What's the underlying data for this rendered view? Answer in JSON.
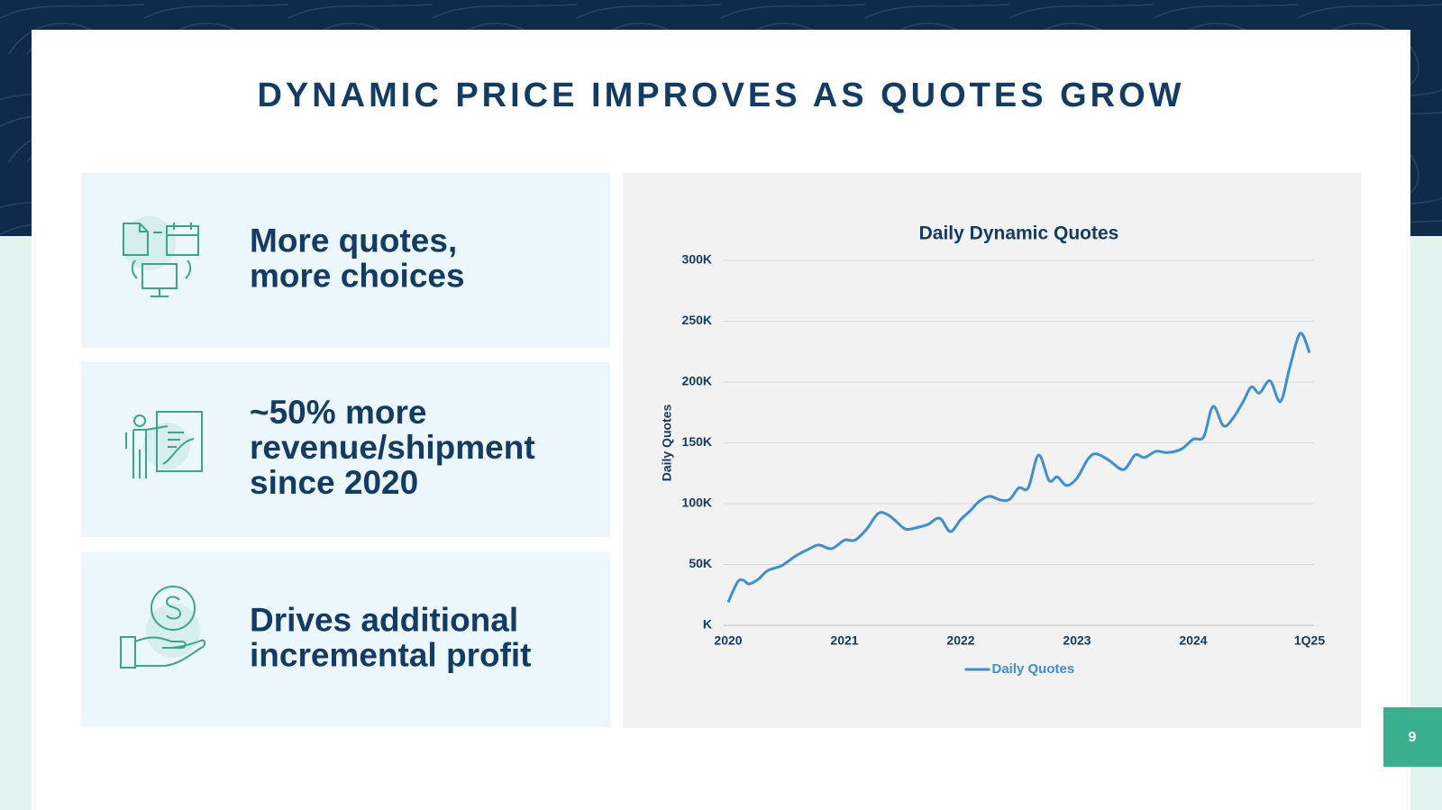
{
  "header": {
    "title": "DYNAMIC PRICE IMPROVES AS QUOTES GROW"
  },
  "cards": [
    {
      "lines": [
        "More quotes,",
        "more choices"
      ]
    },
    {
      "lines": [
        "~50% more",
        "revenue/shipment",
        "since 2020"
      ]
    },
    {
      "lines": [
        "Drives additional",
        "incremental profit"
      ]
    }
  ],
  "page_number": "9",
  "chart_data": {
    "type": "line",
    "title": "Daily Dynamic Quotes",
    "y_label": "Daily Quotes",
    "x": [
      2020.0,
      2020.08,
      2020.13,
      2020.18,
      2020.26,
      2020.34,
      2020.46,
      2020.58,
      2020.7,
      2020.78,
      2020.89,
      2021.0,
      2021.09,
      2021.19,
      2021.29,
      2021.37,
      2021.45,
      2021.53,
      2021.65,
      2021.72,
      2021.82,
      2021.91,
      2022.0,
      2022.08,
      2022.16,
      2022.25,
      2022.34,
      2022.42,
      2022.5,
      2022.58,
      2022.67,
      2022.76,
      2022.83,
      2022.91,
      2023.0,
      2023.09,
      2023.16,
      2023.27,
      2023.4,
      2023.5,
      2023.58,
      2023.68,
      2023.78,
      2023.9,
      2024.0,
      2024.09,
      2024.17,
      2024.26,
      2024.34,
      2024.43,
      2024.5,
      2024.57,
      2024.66,
      2024.75,
      2024.83,
      2024.92,
      2025.0
    ],
    "series": [
      {
        "name": "Daily Quotes",
        "color": "#3a8fd6",
        "values": [
          19000,
          35500,
          37000,
          34000,
          38000,
          45000,
          49000,
          57000,
          63000,
          66000,
          63000,
          70000,
          70000,
          79000,
          92000,
          91000,
          85000,
          79000,
          81000,
          83000,
          88000,
          77000,
          87000,
          94000,
          102000,
          106000,
          103000,
          103500,
          113000,
          113000,
          140000,
          119000,
          122000,
          115000,
          121000,
          136000,
          141000,
          136000,
          128000,
          140000,
          138000,
          143000,
          142000,
          145000,
          153000,
          155000,
          180000,
          164000,
          170000,
          184000,
          196000,
          191000,
          201000,
          184000,
          212000,
          240000,
          224000
        ]
      }
    ],
    "xlim": [
      2020,
      2025
    ],
    "xticks": [
      2020,
      2021,
      2022,
      2023,
      2024,
      {
        "value": 2025,
        "label": "1Q25"
      }
    ],
    "ylim": [
      0,
      300000
    ],
    "yticks": [
      {
        "value": 0,
        "label": "K"
      },
      {
        "value": 50000,
        "label": "50K"
      },
      {
        "value": 100000,
        "label": "100K"
      },
      {
        "value": 150000,
        "label": "150K"
      },
      {
        "value": 200000,
        "label": "200K"
      },
      {
        "value": 250000,
        "label": "250K"
      },
      {
        "value": 300000,
        "label": "300K"
      }
    ],
    "grid": true,
    "legend": "bottom"
  }
}
